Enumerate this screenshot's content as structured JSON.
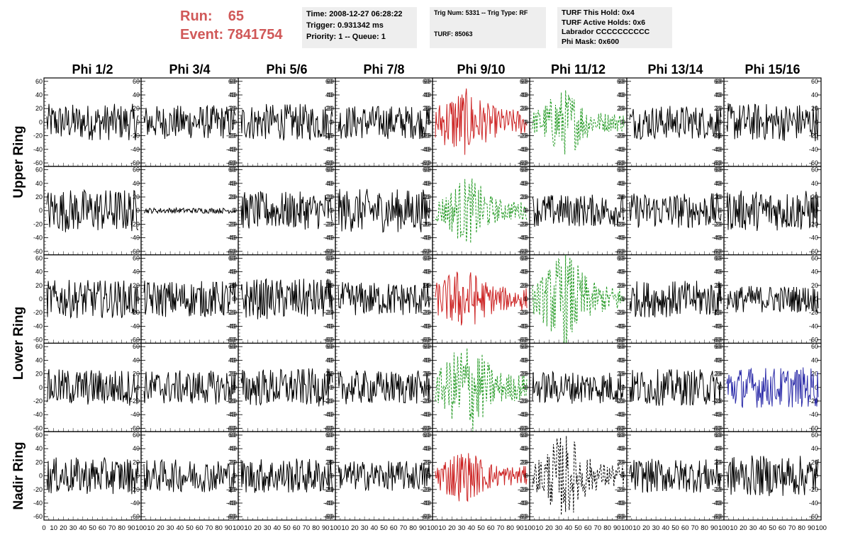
{
  "header": {
    "run_label": "Run:",
    "run_value": "65",
    "event_label": "Event:",
    "event_value": "7841754",
    "time_line": "Time: 2008-12-27 06:28:22",
    "trigger_line": "Trigger: 0.931342 ms",
    "priority_line": "Priority: 1 -- Queue: 1",
    "trig_line": "Trig Num: 5331 -- Trig Type: RF",
    "turf_line": "TURF: 85063",
    "turf_hold_line": "TURF This Hold: 0x4",
    "turf_active_line": "TURF Active Holds: 0x6",
    "labrador_line": "Labrador CCCCCCCCCC",
    "phi_mask_line": "Phi Mask: 0x600"
  },
  "chart_data": {
    "type": "line",
    "columns": [
      "Phi 1/2",
      "Phi 3/4",
      "Phi 5/6",
      "Phi 7/8",
      "Phi 9/10",
      "Phi 11/12",
      "Phi 13/14",
      "Phi 15/16"
    ],
    "rows": [
      "Upper Ring",
      "Upper Ring",
      "Lower Ring",
      "Lower Ring",
      "Nadir Ring"
    ],
    "row_labels": [
      "Upper Ring",
      "Lower Ring",
      "Nadir Ring"
    ],
    "ylim": [
      -65,
      65
    ],
    "yticks": [
      -60,
      -40,
      -20,
      0,
      20,
      40,
      60
    ],
    "xlim": [
      0,
      100
    ],
    "xtick_labels": [
      "0",
      "10",
      "20",
      "30",
      "40",
      "50",
      "60",
      "70",
      "80",
      "90",
      "100"
    ],
    "colors": {
      "normal": "#000000",
      "red": "#cc2222",
      "green": "#229922",
      "blue": "#2a2aa8",
      "nadir_dashed": "#000000"
    },
    "panels": [
      [
        {
          "style": "normal",
          "amp": 27
        },
        {
          "style": "normal",
          "amp": 25
        },
        {
          "style": "normal",
          "amp": 27
        },
        {
          "style": "normal",
          "amp": 25
        },
        {
          "style": "red",
          "amp": 42
        },
        {
          "style": "green",
          "amp": 40,
          "burst": true
        },
        {
          "style": "normal",
          "amp": 25
        },
        {
          "style": "normal",
          "amp": 28
        }
      ],
      [
        {
          "style": "normal",
          "amp": 32
        },
        {
          "style": "normal",
          "amp": 4
        },
        {
          "style": "normal",
          "amp": 28
        },
        {
          "style": "normal",
          "amp": 32
        },
        {
          "style": "green",
          "amp": 40,
          "burst": true
        },
        {
          "style": "normal",
          "amp": 24
        },
        {
          "style": "normal",
          "amp": 26
        },
        {
          "style": "normal",
          "amp": 30
        }
      ],
      [
        {
          "style": "normal",
          "amp": 28
        },
        {
          "style": "normal",
          "amp": 27
        },
        {
          "style": "normal",
          "amp": 30
        },
        {
          "style": "normal",
          "amp": 25
        },
        {
          "style": "red",
          "amp": 38
        },
        {
          "style": "green",
          "amp": 55,
          "burst": true
        },
        {
          "style": "normal",
          "amp": 27
        },
        {
          "style": "normal",
          "amp": 20
        }
      ],
      [
        {
          "style": "normal",
          "amp": 27
        },
        {
          "style": "normal",
          "amp": 25
        },
        {
          "style": "normal",
          "amp": 28
        },
        {
          "style": "normal",
          "amp": 25
        },
        {
          "style": "green",
          "amp": 58,
          "burst": true
        },
        {
          "style": "normal",
          "amp": 24
        },
        {
          "style": "normal",
          "amp": 27
        },
        {
          "style": "blue",
          "amp": 30
        }
      ],
      [
        {
          "style": "normal",
          "amp": 27
        },
        {
          "style": "normal",
          "amp": 24
        },
        {
          "style": "normal",
          "amp": 26
        },
        {
          "style": "normal",
          "amp": 22
        },
        {
          "style": "red",
          "amp": 32
        },
        {
          "style": "nadir_dashed",
          "amp": 50,
          "burst": true
        },
        {
          "style": "normal",
          "amp": 25
        },
        {
          "style": "normal",
          "amp": 30
        }
      ]
    ]
  }
}
